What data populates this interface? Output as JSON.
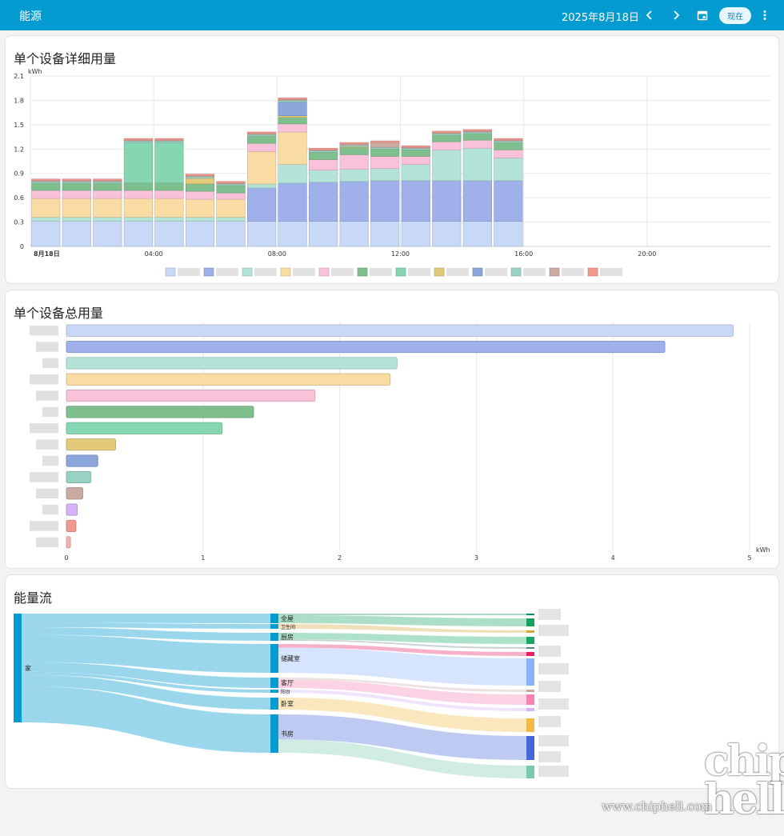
{
  "header": {
    "title": "能源",
    "date": "2025年8月18日",
    "now_label": "现在",
    "prev_icon": "chevron-left-icon",
    "next_icon": "chevron-right-icon",
    "calendar_icon": "calendar-icon",
    "more_icon": "more-vertical-icon"
  },
  "colors": {
    "header_bg": "#039bd0",
    "sankey_node": "#039bd0",
    "sankey_link": "#8fd3ea"
  },
  "detail_card": {
    "title": "单个设备详细用量"
  },
  "total_card": {
    "title": "单个设备总用量"
  },
  "flow_card": {
    "title": "能量流",
    "root_label": "家",
    "rooms": [
      "全屋",
      "卫生间",
      "厨房",
      "储藏室",
      "客厅",
      "阳台",
      "卧室",
      "书房"
    ]
  },
  "watermark": {
    "logo": "chip hell",
    "url": "www.chiphell.com"
  },
  "chart_data": [
    {
      "type": "bar",
      "stacked": true,
      "title": "单个设备详细用量",
      "ylabel": "kWh",
      "ylim": [
        0,
        2.1
      ],
      "yticks": [
        "0",
        "0.3",
        "0.6",
        "0.9",
        "1.2",
        "1.5",
        "1.8",
        "2.1"
      ],
      "xticks": [
        "8月18日",
        "04:00",
        "08:00",
        "12:00",
        "16:00",
        "20:00"
      ],
      "grid": true,
      "hours": 24,
      "series": [
        {
          "color": "#c8d8f7",
          "values": [
            0.31,
            0.31,
            0.31,
            0.31,
            0.31,
            0.31,
            0.31,
            0.31,
            0.31,
            0.31,
            0.31,
            0.31,
            0.31,
            0.31,
            0.31,
            0.31
          ]
        },
        {
          "color": "#9fb0ea",
          "values": [
            0,
            0,
            0,
            0,
            0,
            0,
            0,
            0.41,
            0.47,
            0.48,
            0.49,
            0.5,
            0.5,
            0.5,
            0.5,
            0.5
          ]
        },
        {
          "color": "#b4e3d8",
          "values": [
            0.05,
            0.05,
            0.05,
            0.05,
            0.05,
            0.05,
            0.05,
            0.05,
            0.23,
            0.15,
            0.15,
            0.15,
            0.2,
            0.38,
            0.4,
            0.28
          ]
        },
        {
          "color": "#f9dca4",
          "values": [
            0.23,
            0.23,
            0.23,
            0.23,
            0.23,
            0.22,
            0.22,
            0.4,
            0.4,
            0,
            0,
            0,
            0,
            0,
            0,
            0
          ]
        },
        {
          "color": "#f9c2d8",
          "values": [
            0.1,
            0.1,
            0.1,
            0.1,
            0.1,
            0.1,
            0.08,
            0.1,
            0.1,
            0.13,
            0.18,
            0.15,
            0.1,
            0.1,
            0.1,
            0.1
          ]
        },
        {
          "color": "#7fbf8e",
          "values": [
            0.09,
            0.09,
            0.09,
            0.09,
            0.09,
            0.09,
            0.09,
            0.09,
            0.08,
            0.09,
            0.09,
            0.09,
            0.08,
            0.08,
            0.08,
            0.09
          ]
        },
        {
          "color": "#86d6b1",
          "values": [
            0,
            0,
            0,
            0.5,
            0.5,
            0,
            0,
            0,
            0,
            0,
            0,
            0,
            0,
            0,
            0,
            0
          ]
        },
        {
          "color": "#e3c97a",
          "values": [
            0,
            0,
            0,
            0,
            0,
            0.07,
            0,
            0,
            0.02,
            0,
            0.01,
            0,
            0,
            0,
            0,
            0
          ]
        },
        {
          "color": "#8aa6da",
          "values": [
            0,
            0,
            0,
            0,
            0,
            0,
            0,
            0,
            0.17,
            0,
            0,
            0,
            0,
            0,
            0,
            0
          ]
        },
        {
          "color": "#98d2c2",
          "values": [
            0.02,
            0.02,
            0.02,
            0.02,
            0.02,
            0.02,
            0.02,
            0.02,
            0.02,
            0.02,
            0.02,
            0.02,
            0.02,
            0.02,
            0.02,
            0.02
          ]
        },
        {
          "color": "#c9aba2",
          "values": [
            0.01,
            0.01,
            0.01,
            0.01,
            0.01,
            0.01,
            0.01,
            0.01,
            0.01,
            0.01,
            0.01,
            0.06,
            0.01,
            0.01,
            0.01,
            0.01
          ]
        },
        {
          "color": "#f0998f",
          "values": [
            0.02,
            0.02,
            0.02,
            0.02,
            0.02,
            0.02,
            0.02,
            0.02,
            0.02,
            0.02,
            0.02,
            0.02,
            0.02,
            0.02,
            0.02,
            0.02
          ]
        }
      ]
    },
    {
      "type": "bar",
      "orientation": "horizontal",
      "title": "单个设备总用量",
      "xlabel": "kWh",
      "xlim": [
        0,
        5
      ],
      "xticks": [
        "0",
        "1",
        "2",
        "3",
        "4",
        "5"
      ],
      "grid": true,
      "values": [
        4.88,
        4.38,
        2.42,
        2.37,
        1.82,
        1.37,
        1.14,
        0.36,
        0.23,
        0.18,
        0.12,
        0.08,
        0.07,
        0.03
      ],
      "colors": [
        "#c8d8f7",
        "#9fb0ea",
        "#b4e3d8",
        "#f9dca4",
        "#f9c2d8",
        "#7fbf8e",
        "#86d6b1",
        "#e3c97a",
        "#8aa6da",
        "#98d2c2",
        "#c9aba2",
        "#d4b3f7",
        "#f0998f",
        "#f7b3b3"
      ]
    }
  ]
}
